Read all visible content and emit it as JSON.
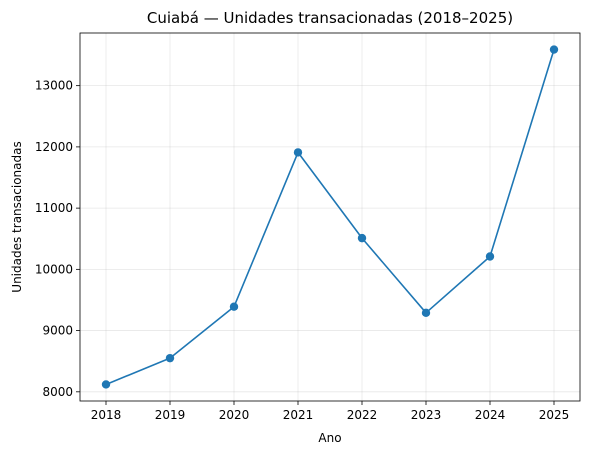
{
  "chart_data": {
    "type": "line",
    "title": "Cuiabá — Unidades transacionadas (2018–2025)",
    "xlabel": "Ano",
    "ylabel": "Unidades transacionadas",
    "categories": [
      "2018",
      "2019",
      "2020",
      "2021",
      "2022",
      "2023",
      "2024",
      "2025"
    ],
    "series": [
      {
        "values": [
          8120,
          8550,
          9390,
          11910,
          10510,
          9290,
          10210,
          13590
        ],
        "color": "#1f77b4"
      }
    ],
    "yticks": [
      8000,
      9000,
      10000,
      11000,
      12000,
      13000
    ],
    "ylim": [
      7850,
      13860
    ],
    "grid": true
  }
}
